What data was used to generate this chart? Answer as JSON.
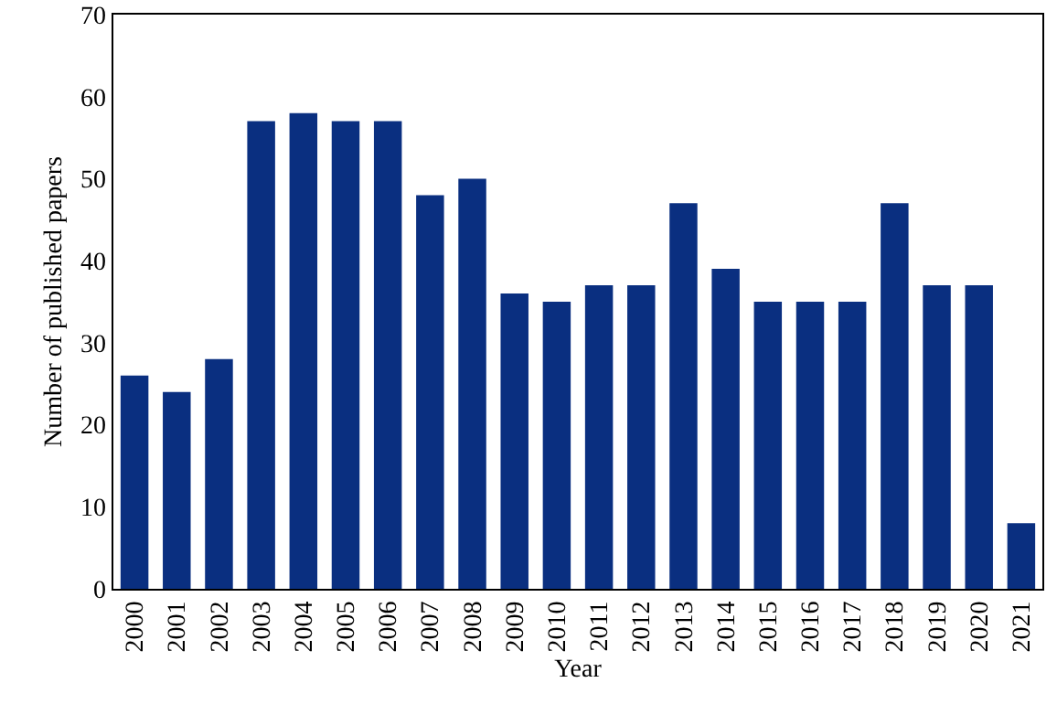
{
  "chart_data": {
    "type": "bar",
    "xlabel": "Year",
    "ylabel": "Number of published papers",
    "categories": [
      "2000",
      "2001",
      "2002",
      "2003",
      "2004",
      "2005",
      "2006",
      "2007",
      "2008",
      "2009",
      "2010",
      "2011",
      "2012",
      "2013",
      "2014",
      "2015",
      "2016",
      "2017",
      "2018",
      "2019",
      "2020",
      "2021"
    ],
    "values": [
      26,
      24,
      28,
      57,
      58,
      57,
      57,
      48,
      50,
      36,
      35,
      37,
      37,
      47,
      39,
      35,
      35,
      35,
      47,
      37,
      37,
      8
    ],
    "color": "#0a2f80",
    "ylim": [
      0,
      70
    ],
    "yticks": [
      0,
      10,
      20,
      30,
      40,
      50,
      60,
      70
    ],
    "grid": false
  }
}
